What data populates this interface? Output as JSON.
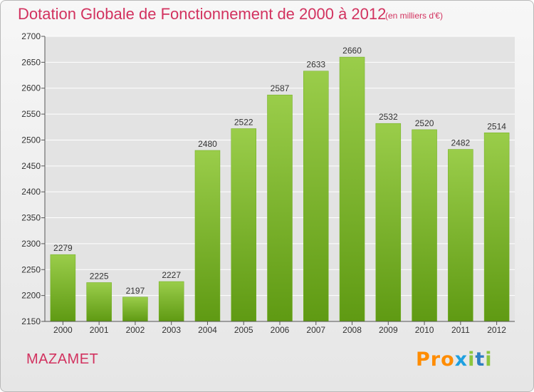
{
  "header": {
    "title": "Dotation Globale de Fonctionnement de 2000 à 2012",
    "subtitle": "(en milliers d'€)"
  },
  "footer": {
    "city": "MAZAMET",
    "logo": {
      "p1": "Pro",
      "p2": "x",
      "p3": "i",
      "p4": "t",
      "p5": "i"
    }
  },
  "colors": {
    "bar_top": "#9acd4a",
    "bar_bottom": "#5f9a13",
    "title": "#d2325f",
    "grid": "#ffffff"
  },
  "chart_data": {
    "type": "bar",
    "categories": [
      "2000",
      "2001",
      "2002",
      "2003",
      "2004",
      "2005",
      "2006",
      "2007",
      "2008",
      "2009",
      "2010",
      "2011",
      "2012"
    ],
    "values": [
      2279,
      2225,
      2197,
      2227,
      2480,
      2522,
      2587,
      2633,
      2660,
      2532,
      2520,
      2482,
      2514
    ],
    "yticks": [
      2150,
      2200,
      2250,
      2300,
      2350,
      2400,
      2450,
      2500,
      2550,
      2600,
      2650,
      2700
    ],
    "ylim": [
      2150,
      2700
    ],
    "title": "Dotation Globale de Fonctionnement de 2000 à 2012",
    "subtitle": "(en milliers d'€)",
    "grid": true
  }
}
